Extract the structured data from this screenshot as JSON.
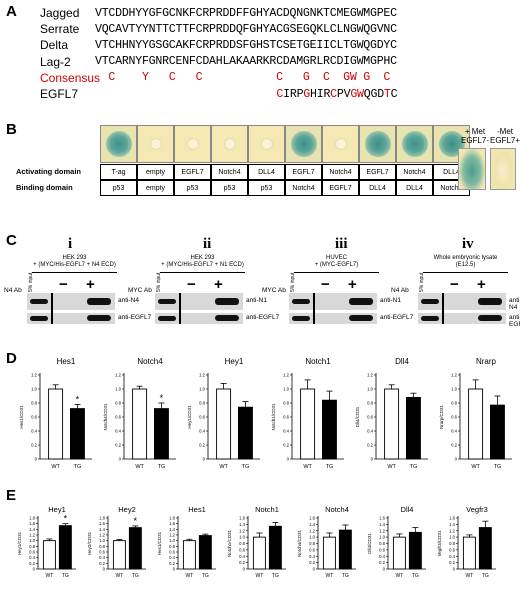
{
  "panel_labels": {
    "a": "A",
    "b": "B",
    "c": "C",
    "d": "D",
    "e": "E"
  },
  "panelA": {
    "rows": [
      {
        "name": "Jagged",
        "seq": "VTCDDHYYGFGCNKFCRPRDDFFGHYACDQNGNKTCMEGWMGPEC"
      },
      {
        "name": "Serrate",
        "seq": "VQCAVTYYNTTCTTFCRPRDDQFGHYACGSEGQKLCLNGWQGVNC"
      },
      {
        "name": "Delta",
        "seq": "VTCHHNYYGSGCAKFCRPRDDSFGHSTCSETGEIICLTGWQGDYC"
      },
      {
        "name": "Lag-2",
        "seq": "VTCARNYFGNRCENFCDAHLAKAARKRCDAMGRLRCDIGWMGPHC"
      }
    ],
    "consensus": {
      "name": "Consensus",
      "seq": "  C    Y   C   C           C   G  C  GW G  C"
    },
    "egfl7": {
      "name": "EGFL7",
      "seq": "                           CIRPGHIRCPVGWQGDTC",
      "red_positions": [
        27,
        31,
        35,
        38,
        39,
        43
      ]
    }
  },
  "panelB": {
    "activating_title": "Activating domain",
    "binding_title": "Binding domain",
    "activating": [
      "T-ag",
      "empty",
      "EGFL7",
      "Notch4",
      "DLL4",
      "EGFL7",
      "Notch4",
      "EGFL7",
      "Notch4",
      "DLL4"
    ],
    "binding": [
      "p53",
      "empty",
      "p53",
      "p53",
      "p53",
      "Notch4",
      "EGFL7",
      "DLL4",
      "DLL4",
      "Notch4"
    ],
    "colony_blue": [
      true,
      false,
      false,
      false,
      false,
      true,
      false,
      true,
      true,
      true
    ],
    "met_plus": "+ Met",
    "met_minus": "-Met",
    "met_egfl7_minus": "EGFL7-",
    "met_egfl7_plus": "EGFL7+"
  },
  "panelC": {
    "subpanels": [
      {
        "num": "i",
        "desc1": "HEK 293",
        "desc2": "+ (MYC/His-EGFL7 + N4 ECD)",
        "ab": "N4 Ab",
        "input": "5% input",
        "minus": "−",
        "plus": "+",
        "blot1": "anti-N4",
        "blot2": "anti-EGFL7"
      },
      {
        "num": "ii",
        "desc1": "HEK 293",
        "desc2": "+ (MYC/His-EGFL7 + N1 ECD)",
        "ab": "MYC Ab",
        "input": "5% input",
        "minus": "−",
        "plus": "+",
        "blot1": "anti-N1",
        "blot2": "anti-EGFL7"
      },
      {
        "num": "iii",
        "desc1": "HUVEC",
        "desc2": "+ (MYC-EGFL7)",
        "ab": "MYC Ab",
        "input": "5% input",
        "minus": "−",
        "plus": "+",
        "blot1": "anti-N1",
        "blot2": "anti-EGFL7"
      },
      {
        "num": "iv",
        "desc1": "Whole embryonic lysate",
        "desc2": "(E12.5)",
        "ab": "N4 Ab",
        "input": "5% input",
        "minus": "−",
        "plus": "+",
        "blot1": "anti-N4",
        "blot2": "anti-EGFL7"
      }
    ]
  },
  "chart_data": [
    {
      "panel": "D",
      "type": "bar",
      "title": "Hes1",
      "ylabel": "Hes1/CD31",
      "categories": [
        "WT",
        "TG"
      ],
      "values": [
        1.0,
        0.72
      ],
      "errors": [
        0.06,
        0.06
      ],
      "ylim": [
        0,
        1.2
      ],
      "yticks": [
        "0",
        "0.2",
        "0.4",
        "0.6",
        "0.8",
        "1.0",
        "1.2"
      ],
      "sig": "*"
    },
    {
      "panel": "D",
      "type": "bar",
      "title": "Notch4",
      "ylabel": "Notch4/CD31",
      "categories": [
        "WT",
        "TG"
      ],
      "values": [
        1.0,
        0.72
      ],
      "errors": [
        0.04,
        0.08
      ],
      "ylim": [
        0,
        1.2
      ],
      "yticks": [
        "0",
        "0.2",
        "0.4",
        "0.6",
        "0.8",
        "1.0",
        "1.2"
      ],
      "sig": "*"
    },
    {
      "panel": "D",
      "type": "bar",
      "title": "Hey1",
      "ylabel": "Hey1/CD31",
      "categories": [
        "WT",
        "TG"
      ],
      "values": [
        1.0,
        0.74
      ],
      "errors": [
        0.08,
        0.08
      ],
      "ylim": [
        0,
        1.2
      ],
      "yticks": [
        "0",
        "0.2",
        "0.4",
        "0.6",
        "0.8",
        "1.0",
        "1.2"
      ],
      "sig": ""
    },
    {
      "panel": "D",
      "type": "bar",
      "title": "Notch1",
      "ylabel": "Notch1/CD31",
      "categories": [
        "WT",
        "TG"
      ],
      "values": [
        1.0,
        0.84
      ],
      "errors": [
        0.13,
        0.13
      ],
      "ylim": [
        0,
        1.2
      ],
      "yticks": [
        "0",
        "0.2",
        "0.4",
        "0.6",
        "0.8",
        "1.0",
        "1.2"
      ],
      "sig": ""
    },
    {
      "panel": "D",
      "type": "bar",
      "title": "Dll4",
      "ylabel": "Dll4/CD31",
      "categories": [
        "WT",
        "TG"
      ],
      "values": [
        1.0,
        0.88
      ],
      "errors": [
        0.06,
        0.06
      ],
      "ylim": [
        0,
        1.2
      ],
      "yticks": [
        "0",
        "0.2",
        "0.4",
        "0.6",
        "0.8",
        "1.0",
        "1.2"
      ],
      "sig": ""
    },
    {
      "panel": "D",
      "type": "bar",
      "title": "Nrarp",
      "ylabel": "Nrarp/CD31",
      "categories": [
        "WT",
        "TG"
      ],
      "values": [
        1.0,
        0.77
      ],
      "errors": [
        0.13,
        0.13
      ],
      "ylim": [
        0,
        1.2
      ],
      "yticks": [
        "0",
        "0.2",
        "0.4",
        "0.6",
        "0.8",
        "1.0",
        "1.2"
      ],
      "sig": ""
    },
    {
      "panel": "E",
      "type": "bar",
      "title": "Hey1",
      "ylabel": "Hey1/CD31",
      "categories": [
        "WT",
        "TG"
      ],
      "values": [
        1.0,
        1.53
      ],
      "errors": [
        0.06,
        0.07
      ],
      "ylim": [
        0,
        1.8
      ],
      "yticks": [
        "0",
        "0.2",
        "0.4",
        "0.6",
        "0.8",
        "1.0",
        "1.2",
        "1.4",
        "1.6",
        "1.8"
      ],
      "sig": "*"
    },
    {
      "panel": "E",
      "type": "bar",
      "title": "Hey2",
      "ylabel": "Hey2/CD31",
      "categories": [
        "WT",
        "TG"
      ],
      "values": [
        1.0,
        1.46
      ],
      "errors": [
        0.04,
        0.06
      ],
      "ylim": [
        0,
        1.8
      ],
      "yticks": [
        "0",
        "0.2",
        "0.4",
        "0.6",
        "0.8",
        "1.0",
        "1.2",
        "1.4",
        "1.6",
        "1.8"
      ],
      "sig": "*"
    },
    {
      "panel": "E",
      "type": "bar",
      "title": "Hes1",
      "ylabel": "Hes1/CD31",
      "categories": [
        "WT",
        "TG"
      ],
      "values": [
        1.0,
        1.18
      ],
      "errors": [
        0.05,
        0.05
      ],
      "ylim": [
        0,
        1.8
      ],
      "yticks": [
        "0",
        "0.2",
        "0.4",
        "0.6",
        "0.8",
        "1.0",
        "1.2",
        "1.4",
        "1.6",
        "1.8"
      ],
      "sig": ""
    },
    {
      "panel": "E",
      "type": "bar",
      "title": "Notch1",
      "ylabel": "Notch1/CD31",
      "categories": [
        "WT",
        "TG"
      ],
      "values": [
        1.0,
        1.34
      ],
      "errors": [
        0.13,
        0.12
      ],
      "ylim": [
        0,
        1.6
      ],
      "yticks": [
        "0",
        "0.2",
        "0.4",
        "0.6",
        "0.8",
        "1.0",
        "1.2",
        "1.4",
        "1.6"
      ],
      "sig": ""
    },
    {
      "panel": "E",
      "type": "bar",
      "title": "Notch4",
      "ylabel": "Notch4/CD31",
      "categories": [
        "WT",
        "TG"
      ],
      "values": [
        1.0,
        1.22
      ],
      "errors": [
        0.13,
        0.16
      ],
      "ylim": [
        0,
        1.6
      ],
      "yticks": [
        "0",
        "0.2",
        "0.4",
        "0.6",
        "0.8",
        "1.0",
        "1.2",
        "1.4",
        "1.6"
      ],
      "sig": ""
    },
    {
      "panel": "E",
      "type": "bar",
      "title": "Dll4",
      "ylabel": "Dll4/CD31",
      "categories": [
        "WT",
        "TG"
      ],
      "values": [
        1.0,
        1.15
      ],
      "errors": [
        0.1,
        0.15
      ],
      "ylim": [
        0,
        1.6
      ],
      "yticks": [
        "0",
        "0.2",
        "0.4",
        "0.6",
        "0.8",
        "1.0",
        "1.2",
        "1.4",
        "1.6"
      ],
      "sig": ""
    },
    {
      "panel": "E",
      "type": "bar",
      "title": "Vegfr3",
      "ylabel": "Vegfr3/CD31",
      "categories": [
        "WT",
        "TG"
      ],
      "values": [
        1.0,
        1.3
      ],
      "errors": [
        0.07,
        0.2
      ],
      "ylim": [
        0,
        1.6
      ],
      "yticks": [
        "0",
        "0.2",
        "0.4",
        "0.6",
        "0.8",
        "1.0",
        "1.2",
        "1.4",
        "1.6"
      ],
      "sig": ""
    }
  ]
}
